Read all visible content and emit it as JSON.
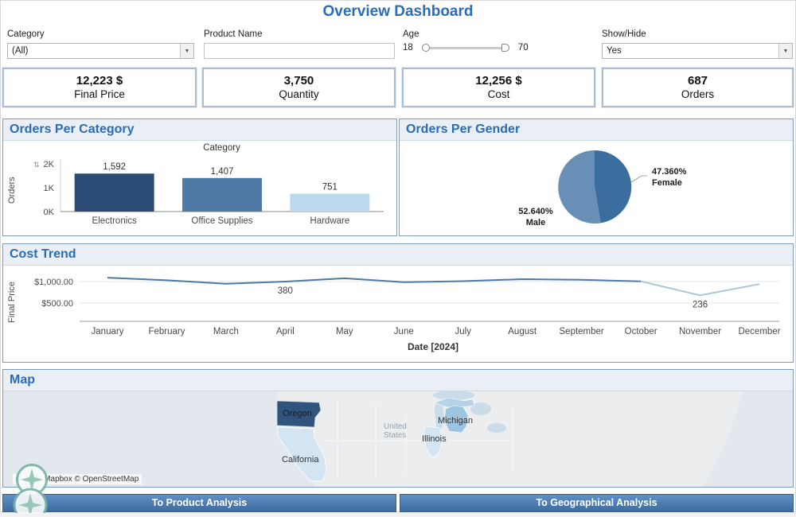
{
  "title": "Overview Dashboard",
  "icons": {
    "dropdown_arrow": "▼",
    "sort": "⇅"
  },
  "filters": {
    "category": {
      "label": "Category",
      "value": "(All)"
    },
    "product_name": {
      "label": "Product Name",
      "value": ""
    },
    "age": {
      "label": "Age",
      "min": "18",
      "max": "70"
    },
    "show_hide": {
      "label": "Show/Hide",
      "value": "Yes"
    }
  },
  "kpis": [
    {
      "value": "12,223 $",
      "label": "Final Price"
    },
    {
      "value": "3,750",
      "label": "Quantity"
    },
    {
      "value": "12,256 $",
      "label": "Cost"
    },
    {
      "value": "687",
      "label": "Orders"
    }
  ],
  "panels": {
    "category_chart": {
      "title": "Orders Per Category"
    },
    "gender_chart": {
      "title": "Orders Per Gender"
    },
    "cost_trend": {
      "title": "Cost Trend"
    },
    "map": {
      "title": "Map"
    }
  },
  "chart_data": [
    {
      "type": "bar",
      "title": "Orders Per Category",
      "x_header": "Category",
      "ylabel": "Orders",
      "categories": [
        "Electronics",
        "Office Supplies",
        "Hardware"
      ],
      "values": [
        1592,
        1407,
        751
      ],
      "value_labels": [
        "1,592",
        "1,407",
        "751"
      ],
      "bar_colors": [
        "#2b4c74",
        "#4f7aa6",
        "#bdd8ec"
      ],
      "ylim": [
        0,
        2000
      ],
      "yticks": [
        {
          "v": 2000,
          "label": "2K"
        },
        {
          "v": 1000,
          "label": "1K"
        },
        {
          "v": 0,
          "label": "0K"
        }
      ]
    },
    {
      "type": "pie",
      "title": "Orders Per Gender",
      "slices": [
        {
          "label": "Female",
          "pct": 47.36,
          "display": "47.360%",
          "color": "#3c6d9f"
        },
        {
          "label": "Male",
          "pct": 52.64,
          "display": "52.640%",
          "color": "#6890b7"
        }
      ]
    },
    {
      "type": "line",
      "title": "Cost Trend",
      "ylabel": "Final Price",
      "xlabel": "Date [2024]",
      "x": [
        "January",
        "February",
        "March",
        "April",
        "May",
        "June",
        "July",
        "August",
        "September",
        "October",
        "November",
        "December"
      ],
      "values": [
        1090,
        1030,
        950,
        1000,
        1075,
        985,
        1010,
        1055,
        1040,
        1005,
        680,
        940
      ],
      "yticks": [
        {
          "v": 1000,
          "label": "$1,000.00"
        },
        {
          "v": 500,
          "label": "$500.00"
        }
      ],
      "annotations": [
        {
          "x": "April",
          "x_index": 3,
          "text": "380"
        },
        {
          "x": "November",
          "x_index": 10,
          "text": "236"
        }
      ],
      "line_color": "#4e79a7",
      "tail_color": "#a6c6de"
    }
  ],
  "map": {
    "labels": {
      "oregon": "Oregon",
      "california": "California",
      "michigan": "Michigan",
      "illinois": "Illinois",
      "country_line1": "United",
      "country_line2": "States"
    },
    "attribution": "© 2026 Mapbox © OpenStreetMap"
  },
  "nav": {
    "product": "To Product Analysis",
    "geo": "To Geographical Analysis"
  }
}
